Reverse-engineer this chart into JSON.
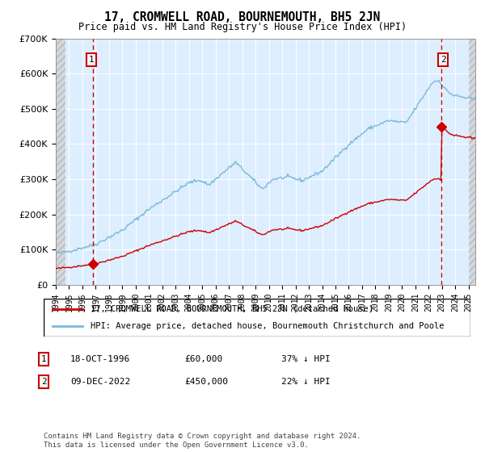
{
  "title": "17, CROMWELL ROAD, BOURNEMOUTH, BH5 2JN",
  "subtitle": "Price paid vs. HM Land Registry's House Price Index (HPI)",
  "legend_line1": "17, CROMWELL ROAD, BOURNEMOUTH, BH5 2JN (detached house)",
  "legend_line2": "HPI: Average price, detached house, Bournemouth Christchurch and Poole",
  "annotation1_label": "1",
  "annotation1_date": "18-OCT-1996",
  "annotation1_price": "£60,000",
  "annotation1_hpi": "37% ↓ HPI",
  "annotation1_year": 1996.8,
  "annotation1_value": 60000,
  "annotation2_label": "2",
  "annotation2_date": "09-DEC-2022",
  "annotation2_price": "£450,000",
  "annotation2_hpi": "22% ↓ HPI",
  "annotation2_year": 2022.93,
  "annotation2_value": 450000,
  "hpi_color": "#7ab8d8",
  "price_color": "#cc0000",
  "vline_color": "#cc0000",
  "background_color": "#ddeeff",
  "ylim_max": 700000,
  "xlim_left": 1994.0,
  "xlim_right": 2025.5,
  "copyright_text": "Contains HM Land Registry data © Crown copyright and database right 2024.\nThis data is licensed under the Open Government Licence v3.0."
}
